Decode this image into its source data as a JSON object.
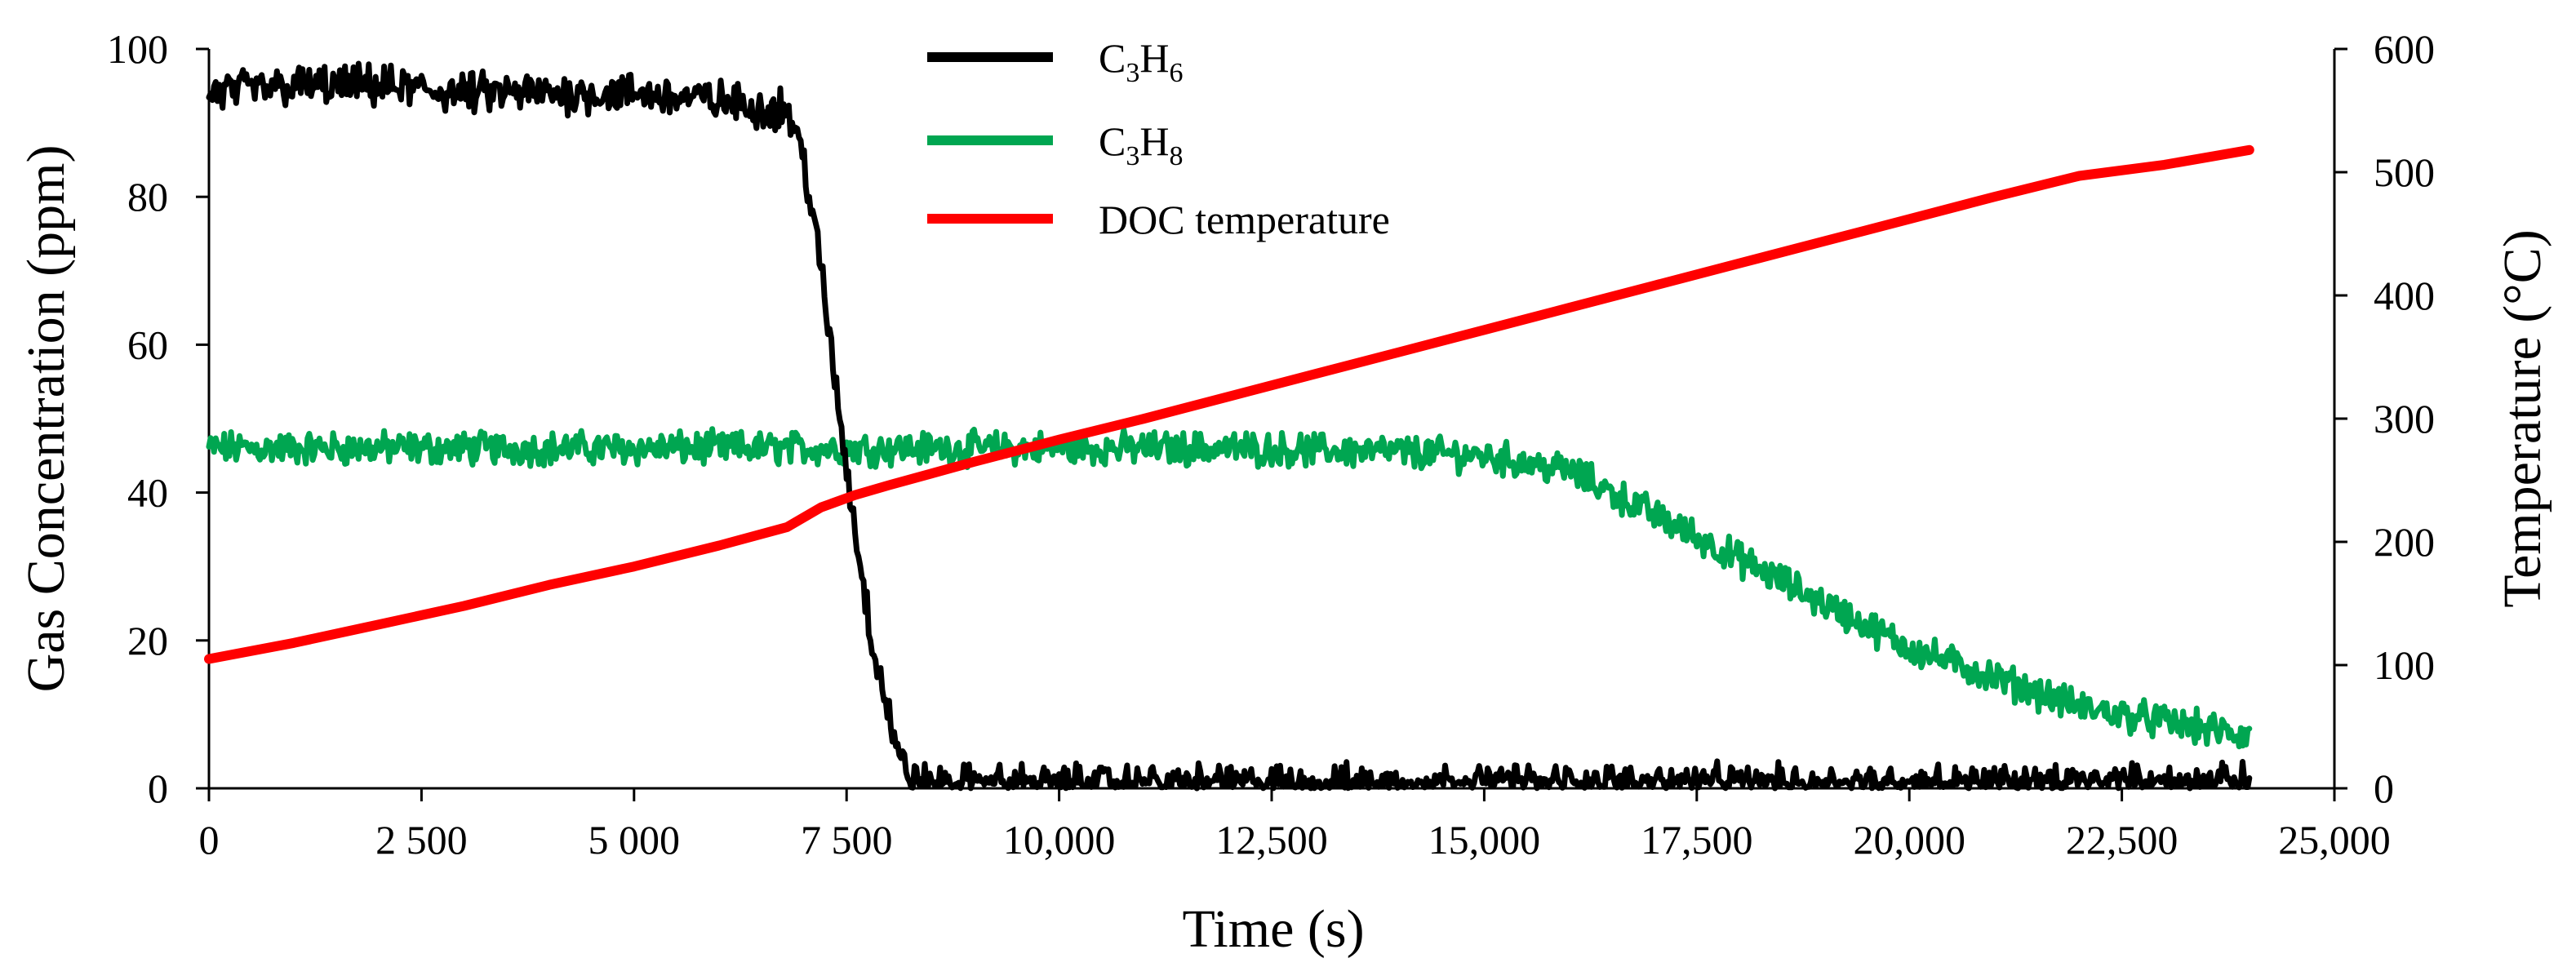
{
  "chart_data": {
    "type": "line",
    "title": "",
    "xlabel": "Time (s)",
    "ylabel": "Gas Concentration (ppm)",
    "y2label": "Temperature (°C)",
    "xlim": [
      0,
      25000
    ],
    "ylim": [
      0,
      100
    ],
    "y2lim": [
      0,
      600
    ],
    "grid": false,
    "legend_position": "top-center",
    "x_ticks": [
      {
        "value": 0,
        "label": "0"
      },
      {
        "value": 2500,
        "label": "2 500"
      },
      {
        "value": 5000,
        "label": "5 000"
      },
      {
        "value": 7500,
        "label": "7 500"
      },
      {
        "value": 10000,
        "label": "10,000"
      },
      {
        "value": 12500,
        "label": "12,500"
      },
      {
        "value": 15000,
        "label": "15,000"
      },
      {
        "value": 17500,
        "label": "17,500"
      },
      {
        "value": 20000,
        "label": "20,000"
      },
      {
        "value": 22500,
        "label": "22,500"
      },
      {
        "value": 25000,
        "label": "25,000"
      }
    ],
    "y_ticks": [
      {
        "value": 0,
        "label": "0"
      },
      {
        "value": 20,
        "label": "20"
      },
      {
        "value": 40,
        "label": "40"
      },
      {
        "value": 60,
        "label": "60"
      },
      {
        "value": 80,
        "label": "80"
      },
      {
        "value": 100,
        "label": "100"
      }
    ],
    "y2_ticks": [
      {
        "value": 0,
        "label": "0"
      },
      {
        "value": 100,
        "label": "100"
      },
      {
        "value": 200,
        "label": "200"
      },
      {
        "value": 300,
        "label": "300"
      },
      {
        "value": 400,
        "label": "400"
      },
      {
        "value": 500,
        "label": "500"
      },
      {
        "value": 600,
        "label": "600"
      }
    ],
    "series": [
      {
        "name": "C3H6",
        "label_main": "C",
        "label_sub1": "3",
        "label_mid": "H",
        "label_sub2": "6",
        "color": "#000000",
        "axis": "left",
        "noise": 2.2,
        "x": [
          0,
          1000,
          2000,
          3000,
          4000,
          5000,
          6000,
          6500,
          6800,
          7000,
          7200,
          7400,
          7600,
          7800,
          8000,
          8100,
          8200,
          8400,
          9000,
          10000,
          11000,
          12000,
          13000,
          14000,
          15000,
          16000,
          17000,
          18000,
          19000,
          20000,
          21000,
          22000,
          23000,
          24000
        ],
        "y": [
          94,
          95,
          95,
          94,
          94,
          94,
          93,
          92,
          92,
          85,
          70,
          52,
          35,
          20,
          10,
          5,
          2,
          0.5,
          0.5,
          0.5,
          0.5,
          0.5,
          0.5,
          0.5,
          0.5,
          0.5,
          0.5,
          0.5,
          0.5,
          0.5,
          0.5,
          0.5,
          0.5,
          0.5
        ]
      },
      {
        "name": "C3H8",
        "label_main": "C",
        "label_sub1": "3",
        "label_mid": "H",
        "label_sub2": "8",
        "color": "#00a651",
        "axis": "left",
        "noise": 1.8,
        "x": [
          0,
          2000,
          4000,
          6000,
          8000,
          10000,
          12000,
          14000,
          15000,
          16000,
          16500,
          17000,
          17500,
          18000,
          18500,
          19000,
          19500,
          20000,
          20500,
          21000,
          21500,
          22000,
          22500,
          23000,
          23500,
          24000
        ],
        "y": [
          46,
          46,
          46,
          46,
          46,
          46,
          46,
          45.5,
          45,
          43,
          40,
          37,
          34,
          31,
          28,
          25,
          22,
          19,
          17,
          15,
          13,
          11,
          10,
          9,
          8,
          7
        ]
      },
      {
        "name": "DOC temperature",
        "label_main": "DOC temperature",
        "color": "#ff0000",
        "axis": "right",
        "noise": 0,
        "x": [
          0,
          1000,
          2000,
          3000,
          4000,
          5000,
          6000,
          6800,
          7200,
          7600,
          8000,
          9000,
          10000,
          11000,
          12000,
          13000,
          14000,
          15000,
          16000,
          17000,
          18000,
          19000,
          20000,
          21000,
          22000,
          23000,
          24000
        ],
        "y": [
          105,
          118,
          133,
          148,
          165,
          180,
          197,
          212,
          228,
          238,
          246,
          265,
          283,
          300,
          318,
          336,
          354,
          372,
          390,
          408,
          426,
          444,
          462,
          480,
          497,
          506,
          518
        ]
      }
    ]
  }
}
